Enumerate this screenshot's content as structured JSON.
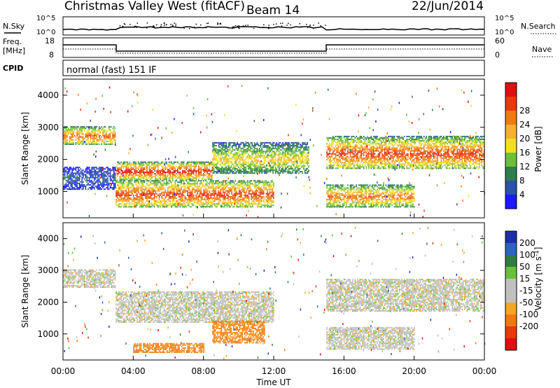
{
  "header": {
    "station": "Christmas Valley West (fitACF)",
    "beam": "Beam 14",
    "date": "22/Jun/2014"
  },
  "status_panels": {
    "nsky_label": "N.Sky",
    "nsky_tick_top": "10^5",
    "nsky_tick_bottom": "10^0",
    "nsearch_label": "N.Search",
    "nsearch_tick_top": "10^5",
    "nsearch_tick_bottom": "10^0",
    "freq_label_line1": "Freq.",
    "freq_label_line2": "[MHz]",
    "freq_tick_top": "18",
    "freq_tick_bottom": "8",
    "nave_label": "Nave",
    "nave_tick_top": "60",
    "nave_tick_bottom": "0",
    "cpid_label": "CPID",
    "cpid_value": "normal (fast) 151 IF"
  },
  "colors": {
    "power": [
      "#1a1aff",
      "#2a52a6",
      "#2c7f4a",
      "#6bbf3a",
      "#f0e020",
      "#f6b030",
      "#f07a10",
      "#e83a0a",
      "#e01010"
    ],
    "velocity": [
      "#1b2fa8",
      "#2a64c0",
      "#2f7d40",
      "#66c23a",
      "#c0c0c0",
      "#c0c0c0",
      "#f5a623",
      "#f07a10",
      "#e83a0a",
      "#e01010"
    ],
    "ground_scatter": "#c0c0c0"
  },
  "chart_data": [
    {
      "type": "heatmap",
      "panel": "power",
      "ylabel": "Slant Range [km]",
      "ylim": [
        180,
        4500
      ],
      "yticks": [
        1000,
        2000,
        3000,
        4000
      ],
      "xlim": [
        0,
        24
      ],
      "colorbar": {
        "label": "Power [dB]",
        "range": [
          0,
          32
        ],
        "ticks": [
          "4",
          "8",
          "12",
          "16",
          "20",
          "24",
          "28"
        ]
      },
      "bands": [
        {
          "t0": 0.0,
          "t1": 3.0,
          "r0": 2450,
          "r1": 3000,
          "peak_db": 26
        },
        {
          "t0": 0.0,
          "t1": 3.0,
          "r0": 1050,
          "r1": 1750,
          "peak_db": 6
        },
        {
          "t0": 3.0,
          "t1": 8.5,
          "r0": 1350,
          "r1": 1900,
          "peak_db": 30
        },
        {
          "t0": 8.5,
          "t1": 14.0,
          "r0": 1550,
          "r1": 2500,
          "peak_db": 18
        },
        {
          "t0": 3.0,
          "t1": 12.0,
          "r0": 500,
          "r1": 1350,
          "peak_db": 28
        },
        {
          "t0": 15.0,
          "t1": 24.0,
          "r0": 1700,
          "r1": 2700,
          "peak_db": 28
        },
        {
          "t0": 15.0,
          "t1": 20.0,
          "r0": 500,
          "r1": 1200,
          "peak_db": 24
        }
      ]
    },
    {
      "type": "heatmap",
      "panel": "velocity",
      "ylabel": "Slant Range [km]",
      "xlabel": "Time UT",
      "ylim": [
        180,
        4500
      ],
      "yticks": [
        1000,
        2000,
        3000,
        4000
      ],
      "xlim": [
        0,
        24
      ],
      "xticks": [
        "00:00",
        "04:00",
        "08:00",
        "12:00",
        "16:00",
        "20:00",
        "00:00"
      ],
      "colorbar": {
        "label": "Velocity [m s^-1]",
        "ticks": [
          "200",
          "100",
          "50",
          "15",
          "-15",
          "-50",
          "-100",
          "-200"
        ]
      },
      "bands": [
        {
          "t0": 0.0,
          "t1": 3.0,
          "r0": 2450,
          "r1": 3000,
          "velocity": 0
        },
        {
          "t0": 3.0,
          "t1": 12.0,
          "r0": 1350,
          "r1": 2300,
          "velocity": 0
        },
        {
          "t0": 8.5,
          "t1": 11.5,
          "r0": 700,
          "r1": 1400,
          "velocity": -60
        },
        {
          "t0": 4.0,
          "t1": 8.0,
          "r0": 400,
          "r1": 700,
          "velocity": -60
        },
        {
          "t0": 15.0,
          "t1": 24.0,
          "r0": 1700,
          "r1": 2700,
          "velocity": 0
        },
        {
          "t0": 15.0,
          "t1": 20.0,
          "r0": 500,
          "r1": 1200,
          "velocity": 0
        }
      ]
    }
  ]
}
